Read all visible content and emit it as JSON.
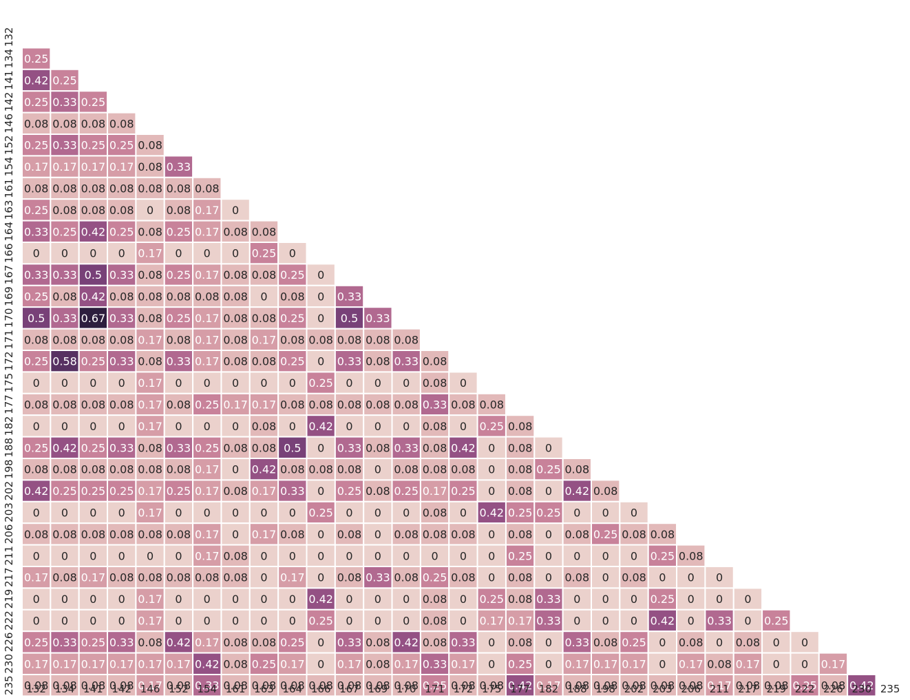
{
  "chart_data": {
    "type": "heatmap",
    "title": "",
    "xlabel": "",
    "ylabel": "",
    "colorbar": false,
    "mask": "lower-triangle",
    "color_scale": {
      "min": 0,
      "max": 0.67,
      "stops": [
        "#ebd1cc",
        "#dca9ad",
        "#c57c97",
        "#9a5487",
        "#6b3a73",
        "#2d1e3e"
      ]
    },
    "x_categories": [
      "132",
      "134",
      "141",
      "142",
      "146",
      "152",
      "154",
      "161",
      "163",
      "164",
      "166",
      "167",
      "169",
      "170",
      "171",
      "172",
      "175",
      "177",
      "182",
      "188",
      "198",
      "202",
      "203",
      "206",
      "211",
      "217",
      "219",
      "222",
      "226",
      "230",
      "235"
    ],
    "y_categories": [
      "132",
      "134",
      "141",
      "142",
      "146",
      "152",
      "154",
      "161",
      "163",
      "164",
      "166",
      "167",
      "169",
      "170",
      "171",
      "172",
      "175",
      "177",
      "182",
      "188",
      "198",
      "202",
      "203",
      "206",
      "211",
      "217",
      "219",
      "222",
      "226",
      "230",
      "235"
    ],
    "rows": [
      [],
      [
        0.25
      ],
      [
        0.42,
        0.25
      ],
      [
        0.25,
        0.33,
        0.25
      ],
      [
        0.08,
        0.08,
        0.08,
        0.08
      ],
      [
        0.25,
        0.33,
        0.25,
        0.25,
        0.08
      ],
      [
        0.17,
        0.17,
        0.17,
        0.17,
        0.08,
        0.33
      ],
      [
        0.08,
        0.08,
        0.08,
        0.08,
        0.08,
        0.08,
        0.08
      ],
      [
        0.25,
        0.08,
        0.08,
        0.08,
        0,
        0.08,
        0.17,
        0
      ],
      [
        0.33,
        0.25,
        0.42,
        0.25,
        0.08,
        0.25,
        0.17,
        0.08,
        0.08
      ],
      [
        0,
        0,
        0,
        0,
        0.17,
        0,
        0,
        0,
        0.25,
        0
      ],
      [
        0.33,
        0.33,
        0.5,
        0.33,
        0.08,
        0.25,
        0.17,
        0.08,
        0.08,
        0.25,
        0
      ],
      [
        0.25,
        0.08,
        0.42,
        0.08,
        0.08,
        0.08,
        0.08,
        0.08,
        0,
        0.08,
        0,
        0.33
      ],
      [
        0.5,
        0.33,
        0.67,
        0.33,
        0.08,
        0.25,
        0.17,
        0.08,
        0.08,
        0.25,
        0,
        0.5,
        0.33
      ],
      [
        0.08,
        0.08,
        0.08,
        0.08,
        0.17,
        0.08,
        0.17,
        0.08,
        0.17,
        0.08,
        0.08,
        0.08,
        0.08,
        0.08
      ],
      [
        0.25,
        0.58,
        0.25,
        0.33,
        0.08,
        0.33,
        0.17,
        0.08,
        0.08,
        0.25,
        0,
        0.33,
        0.08,
        0.33,
        0.08
      ],
      [
        0,
        0,
        0,
        0,
        0.17,
        0,
        0,
        0,
        0,
        0,
        0.25,
        0,
        0,
        0,
        0.08,
        0
      ],
      [
        0.08,
        0.08,
        0.08,
        0.08,
        0.17,
        0.08,
        0.25,
        0.17,
        0.17,
        0.08,
        0.08,
        0.08,
        0.08,
        0.08,
        0.33,
        0.08,
        0.08
      ],
      [
        0,
        0,
        0,
        0,
        0.17,
        0,
        0,
        0,
        0.08,
        0,
        0.42,
        0,
        0,
        0,
        0.08,
        0,
        0.25,
        0.08
      ],
      [
        0.25,
        0.42,
        0.25,
        0.33,
        0.08,
        0.33,
        0.25,
        0.08,
        0.08,
        0.5,
        0,
        0.33,
        0.08,
        0.33,
        0.08,
        0.42,
        0,
        0.08,
        0
      ],
      [
        0.08,
        0.08,
        0.08,
        0.08,
        0.08,
        0.08,
        0.17,
        0,
        0.42,
        0.08,
        0.08,
        0.08,
        0,
        0.08,
        0.08,
        0.08,
        0,
        0.08,
        0.25,
        0.08
      ],
      [
        0.42,
        0.25,
        0.25,
        0.25,
        0.17,
        0.25,
        0.17,
        0.08,
        0.17,
        0.33,
        0,
        0.25,
        0.08,
        0.25,
        0.17,
        0.25,
        0,
        0.08,
        0,
        0.42,
        0.08
      ],
      [
        0,
        0,
        0,
        0,
        0.17,
        0,
        0,
        0,
        0,
        0,
        0.25,
        0,
        0,
        0,
        0.08,
        0,
        0.42,
        0.25,
        0.25,
        0,
        0,
        0
      ],
      [
        0.08,
        0.08,
        0.08,
        0.08,
        0.08,
        0.08,
        0.17,
        0,
        0.17,
        0.08,
        0,
        0.08,
        0,
        0.08,
        0.08,
        0.08,
        0,
        0.08,
        0,
        0.08,
        0.25,
        0.08,
        0.08
      ],
      [
        0,
        0,
        0,
        0,
        0,
        0,
        0.17,
        0.08,
        0,
        0,
        0,
        0,
        0,
        0,
        0,
        0,
        0,
        0.25,
        0,
        0,
        0,
        0,
        0.25,
        0.08
      ],
      [
        0.17,
        0.08,
        0.17,
        0.08,
        0.08,
        0.08,
        0.08,
        0.08,
        0,
        0.17,
        0,
        0.08,
        0.33,
        0.08,
        0.25,
        0.08,
        0,
        0.08,
        0,
        0.08,
        0,
        0.08,
        0,
        0,
        0
      ],
      [
        0,
        0,
        0,
        0,
        0.17,
        0,
        0,
        0,
        0,
        0,
        0.42,
        0,
        0,
        0,
        0.08,
        0,
        0.25,
        0.08,
        0.33,
        0,
        0,
        0,
        0.25,
        0,
        0,
        0
      ],
      [
        0,
        0,
        0,
        0,
        0.17,
        0,
        0,
        0,
        0,
        0,
        0.25,
        0,
        0,
        0,
        0.08,
        0,
        0.17,
        0.17,
        0.33,
        0,
        0,
        0,
        0.42,
        0,
        0.33,
        0,
        0.25
      ],
      [
        0.25,
        0.33,
        0.25,
        0.33,
        0.08,
        0.42,
        0.17,
        0.08,
        0.08,
        0.25,
        0,
        0.33,
        0.08,
        0.42,
        0.08,
        0.33,
        0,
        0.08,
        0,
        0.33,
        0.08,
        0.25,
        0,
        0.08,
        0,
        0.08,
        0,
        0
      ],
      [
        0.17,
        0.17,
        0.17,
        0.17,
        0.17,
        0.17,
        0.42,
        0.08,
        0.25,
        0.17,
        0,
        0.17,
        0.08,
        0.17,
        0.33,
        0.17,
        0,
        0.25,
        0,
        0.17,
        0.17,
        0.17,
        0,
        0.17,
        0.08,
        0.17,
        0,
        0,
        0.17
      ],
      [
        0.08,
        0.08,
        0.08,
        0.08,
        0.17,
        0.08,
        0.33,
        0.08,
        0.08,
        0.08,
        0.08,
        0.08,
        0.08,
        0.08,
        0.25,
        0.08,
        0.08,
        0.42,
        0.17,
        0.08,
        0.08,
        0.08,
        0.08,
        0.08,
        0.17,
        0.08,
        0.08,
        0.25,
        0.08,
        0.42
      ]
    ]
  }
}
